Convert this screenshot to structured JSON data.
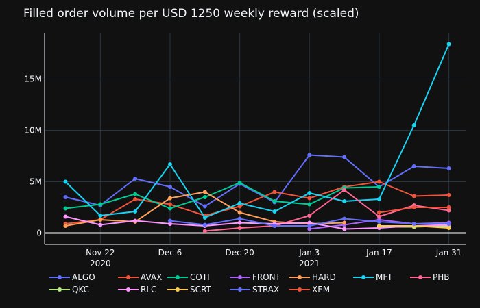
{
  "chart_data": {
    "type": "line",
    "title": "Filled order volume per USD 1250 weekly reward (scaled)",
    "xlabel": "",
    "ylabel": "",
    "x_dates": [
      "Nov 15",
      "Nov 22",
      "Nov 29",
      "Dec 6",
      "Dec 13",
      "Dec 20",
      "Dec 27",
      "Jan 3",
      "Jan 10",
      "Jan 17",
      "Jan 24",
      "Jan 31"
    ],
    "x_ticks": [
      {
        "index": 1,
        "label": "Nov 22",
        "sub": "2020"
      },
      {
        "index": 3,
        "label": "Dec 6",
        "sub": ""
      },
      {
        "index": 5,
        "label": "Dec 20",
        "sub": ""
      },
      {
        "index": 7,
        "label": "Jan 3",
        "sub": "2021"
      },
      {
        "index": 9,
        "label": "Jan 17",
        "sub": ""
      },
      {
        "index": 11,
        "label": "Jan 31",
        "sub": ""
      }
    ],
    "y_ticks": [
      {
        "value": 0,
        "label": "0"
      },
      {
        "value": 5000000,
        "label": "5M"
      },
      {
        "value": 10000000,
        "label": "10M"
      },
      {
        "value": 15000000,
        "label": "15M"
      }
    ],
    "xlim": [
      -0.6,
      11.5
    ],
    "ylim": [
      -1100000,
      19500000
    ],
    "grid": true,
    "legend_position": "bottom",
    "series": [
      {
        "name": "ALGO",
        "color": "#636efa",
        "values": [
          3500000,
          2700000,
          5300000,
          4500000,
          2600000,
          4800000,
          3000000,
          7600000,
          7400000,
          4500000,
          6500000,
          6300000
        ]
      },
      {
        "name": "AVAX",
        "color": "#ef553b",
        "values": [
          900000,
          1300000,
          3300000,
          2800000,
          1700000,
          2600000,
          4000000,
          3400000,
          4500000,
          5000000,
          3600000,
          3700000
        ]
      },
      {
        "name": "COTI",
        "color": "#00cc96",
        "values": [
          2400000,
          2800000,
          3800000,
          2400000,
          3500000,
          4900000,
          3100000,
          2800000,
          4400000,
          4500000,
          null,
          null
        ]
      },
      {
        "name": "FRONT",
        "color": "#ab63fa",
        "values": [
          null,
          null,
          null,
          null,
          null,
          null,
          null,
          400000,
          800000,
          1300000,
          900000,
          1000000
        ]
      },
      {
        "name": "HARD",
        "color": "#ffa15a",
        "values": [
          700000,
          1300000,
          1100000,
          3400000,
          4000000,
          2000000,
          1100000,
          900000,
          1000000,
          null,
          null,
          null
        ]
      },
      {
        "name": "MFT",
        "color": "#19d3f3",
        "values": [
          5000000,
          1700000,
          2100000,
          6700000,
          1500000,
          2900000,
          2100000,
          3900000,
          3100000,
          3300000,
          10500000,
          18400000
        ]
      },
      {
        "name": "PHB",
        "color": "#ff6692",
        "values": [
          null,
          null,
          null,
          null,
          200000,
          500000,
          700000,
          1700000,
          4200000,
          1600000,
          2700000,
          2200000
        ]
      },
      {
        "name": "QKC",
        "color": "#b6e880",
        "values": [
          null,
          null,
          null,
          null,
          null,
          null,
          null,
          null,
          null,
          600000,
          600000,
          700000
        ]
      },
      {
        "name": "RLC",
        "color": "#ff97ff",
        "values": [
          1600000,
          800000,
          1200000,
          900000,
          700000,
          1000000,
          900000,
          1000000,
          400000,
          500000,
          700000,
          800000
        ]
      },
      {
        "name": "SCRT",
        "color": "#fecb52",
        "values": [
          null,
          null,
          null,
          null,
          null,
          null,
          null,
          null,
          null,
          700000,
          700000,
          500000
        ]
      },
      {
        "name": "STRAX",
        "color": "#636efa",
        "values": [
          null,
          null,
          null,
          1200000,
          800000,
          1400000,
          700000,
          700000,
          1400000,
          1100000,
          900000,
          900000
        ]
      },
      {
        "name": "XEM",
        "color": "#ef553b",
        "values": [
          null,
          null,
          null,
          null,
          null,
          null,
          null,
          null,
          null,
          2000000,
          2500000,
          2500000
        ]
      }
    ]
  }
}
